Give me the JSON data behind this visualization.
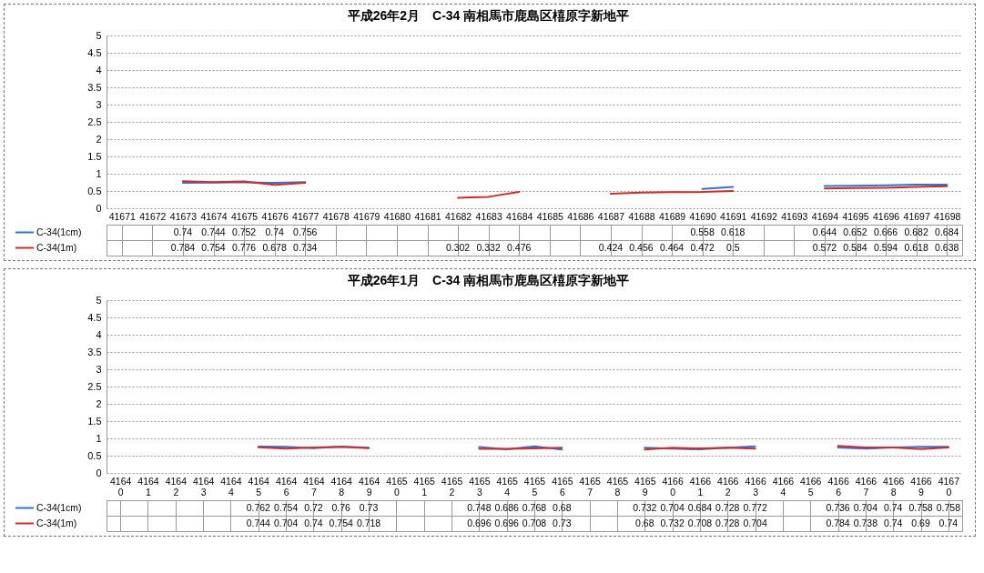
{
  "chart_data": [
    {
      "type": "line",
      "title": "平成26年2月　C-34 南相馬市鹿島区橲原字新地平",
      "categories": [
        "41671",
        "41672",
        "41673",
        "41674",
        "41675",
        "41676",
        "41677",
        "41678",
        "41679",
        "41680",
        "41681",
        "41682",
        "41683",
        "41684",
        "41685",
        "41686",
        "41687",
        "41688",
        "41689",
        "41690",
        "41691",
        "41692",
        "41693",
        "41694",
        "41695",
        "41696",
        "41697",
        "41698"
      ],
      "series": [
        {
          "name": "C-34(1cm)",
          "color": "#2f72d0",
          "values": [
            null,
            null,
            0.74,
            0.744,
            0.752,
            0.74,
            0.756,
            null,
            null,
            null,
            null,
            null,
            null,
            null,
            null,
            null,
            null,
            null,
            null,
            0.558,
            0.618,
            null,
            null,
            0.644,
            0.652,
            0.666,
            0.682,
            0.684
          ]
        },
        {
          "name": "C-34(1m)",
          "color": "#d42a2a",
          "values": [
            null,
            null,
            0.784,
            0.754,
            0.776,
            0.678,
            0.734,
            null,
            null,
            null,
            null,
            0.302,
            0.332,
            0.476,
            null,
            null,
            0.424,
            0.456,
            0.464,
            0.472,
            0.5,
            null,
            null,
            0.572,
            0.584,
            0.594,
            0.618,
            0.638
          ]
        }
      ],
      "ylim": [
        0,
        5
      ],
      "yticks": [
        0,
        0.5,
        1,
        1.5,
        2,
        2.5,
        3,
        3.5,
        4,
        4.5,
        5
      ],
      "grid": "y",
      "legend": "bottom",
      "data_labels": true
    },
    {
      "type": "line",
      "title": "平成26年1月　C-34 南相馬市鹿島区橲原字新地平",
      "categories": [
        "41640",
        "41641",
        "41642",
        "41643",
        "41644",
        "41645",
        "41646",
        "41647",
        "41648",
        "41649",
        "41650",
        "41651",
        "41652",
        "41653",
        "41654",
        "41655",
        "41656",
        "41657",
        "41658",
        "41659",
        "41660",
        "41661",
        "41662",
        "41663",
        "41664",
        "41665",
        "41666",
        "41667",
        "41668",
        "41669",
        "41670"
      ],
      "series": [
        {
          "name": "C-34(1cm)",
          "color": "#2f72d0",
          "values": [
            null,
            null,
            null,
            null,
            null,
            0.762,
            0.754,
            0.72,
            0.76,
            0.73,
            null,
            null,
            null,
            0.748,
            0.686,
            0.768,
            0.68,
            null,
            null,
            0.732,
            0.704,
            0.684,
            0.728,
            0.772,
            null,
            null,
            0.736,
            0.704,
            0.74,
            0.758,
            0.758
          ]
        },
        {
          "name": "C-34(1m)",
          "color": "#d42a2a",
          "values": [
            null,
            null,
            null,
            null,
            null,
            0.744,
            0.704,
            0.74,
            0.754,
            0.718,
            null,
            null,
            null,
            0.696,
            0.696,
            0.708,
            0.73,
            null,
            null,
            0.68,
            0.732,
            0.708,
            0.728,
            0.704,
            null,
            null,
            0.784,
            0.738,
            0.74,
            0.69,
            0.74
          ]
        }
      ],
      "ylim": [
        0,
        5
      ],
      "yticks": [
        0,
        0.5,
        1,
        1.5,
        2,
        2.5,
        3,
        3.5,
        4,
        4.5,
        5
      ],
      "grid": "y",
      "legend": "bottom",
      "data_labels": true
    }
  ]
}
